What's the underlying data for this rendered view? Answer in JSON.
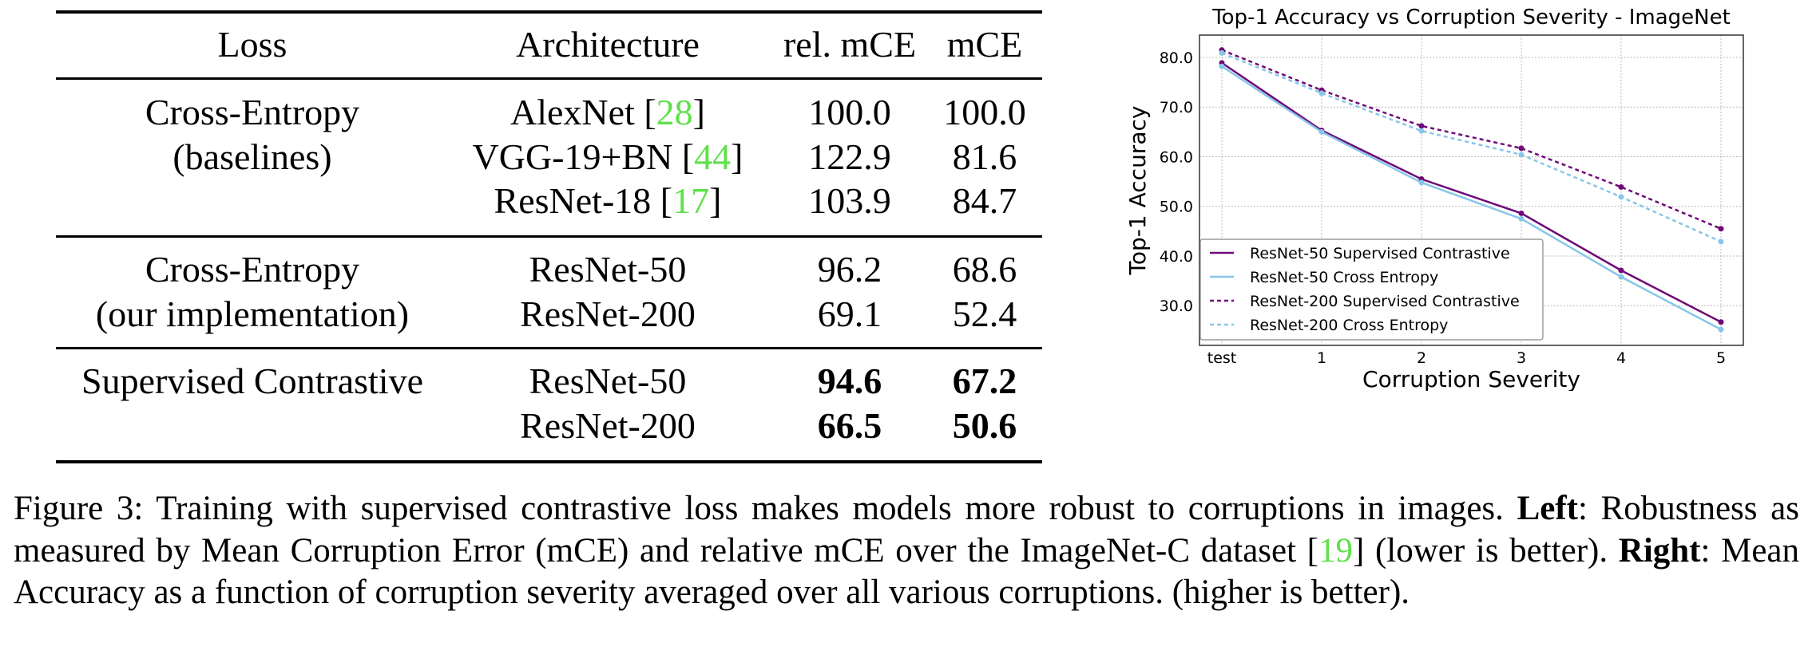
{
  "table": {
    "headers": [
      "Loss",
      "Architecture",
      "rel. mCE",
      "mCE"
    ],
    "groups": [
      {
        "loss": [
          "Cross-Entropy",
          "(baselines)"
        ],
        "rows": [
          {
            "arch": "AlexNet",
            "ref": "28",
            "rel_mce": "100.0",
            "mce": "100.0",
            "bold": false
          },
          {
            "arch": "VGG-19+BN",
            "ref": "44",
            "rel_mce": "122.9",
            "mce": "81.6",
            "bold": false
          },
          {
            "arch": "ResNet-18",
            "ref": "17",
            "rel_mce": "103.9",
            "mce": "84.7",
            "bold": false
          }
        ]
      },
      {
        "loss": [
          "Cross-Entropy",
          "(our implementation)"
        ],
        "rows": [
          {
            "arch": "ResNet-50",
            "ref": null,
            "rel_mce": "96.2",
            "mce": "68.6",
            "bold": false
          },
          {
            "arch": "ResNet-200",
            "ref": null,
            "rel_mce": "69.1",
            "mce": "52.4",
            "bold": false
          }
        ]
      },
      {
        "loss": [
          "Supervised Contrastive"
        ],
        "rows": [
          {
            "arch": "ResNet-50",
            "ref": null,
            "rel_mce": "94.6",
            "mce": "67.2",
            "bold": true
          },
          {
            "arch": "ResNet-200",
            "ref": null,
            "rel_mce": "66.5",
            "mce": "50.6",
            "bold": true
          }
        ]
      }
    ]
  },
  "caption": {
    "prefix": "Figure 3: Training with supervised contrastive loss makes models more robust to corruptions in images. ",
    "left_label": "Left",
    "left_text": ": Robustness as measured by Mean Corruption Error (mCE) and relative mCE over the ImageNet-C dataset [",
    "ref": "19",
    "mid_text": "] (lower is better). ",
    "right_label": "Right",
    "right_text": ": Mean Accuracy as a function of corruption severity averaged over all various corruptions. (higher is better)."
  },
  "colors": {
    "purple": "#6e0a78",
    "lightblue": "#87c6e8",
    "ref_green": "#5fe04a"
  },
  "chart_data": {
    "type": "line",
    "title": "Top-1 Accuracy vs Corruption Severity - ImageNet",
    "xlabel": "Corruption Severity",
    "ylabel": "Top-1 Accuracy",
    "categories": [
      "test",
      "1",
      "2",
      "3",
      "4",
      "5"
    ],
    "yticks": [
      "30.0",
      "40.0",
      "50.0",
      "60.0",
      "70.0",
      "80.0"
    ],
    "ylim": [
      22.0,
      84.5
    ],
    "grid": true,
    "legend_position": "bottom-left",
    "series": [
      {
        "name": "ResNet-50 Supervised Contrastive",
        "color": "#6e0a78",
        "style": "solid",
        "values": [
          78.9,
          65.3,
          55.5,
          48.6,
          37.1,
          26.7
        ]
      },
      {
        "name": "ResNet-50 Cross Entropy",
        "color": "#87c6e8",
        "style": "solid",
        "values": [
          78.2,
          65.0,
          54.8,
          47.5,
          35.8,
          25.2
        ]
      },
      {
        "name": "ResNet-200 Supervised Contrastive",
        "color": "#6e0a78",
        "style": "dashed",
        "values": [
          81.5,
          73.4,
          66.2,
          61.7,
          53.9,
          45.5
        ]
      },
      {
        "name": "ResNet-200 Cross Entropy",
        "color": "#87c6e8",
        "style": "dashed",
        "values": [
          80.9,
          72.8,
          65.2,
          60.4,
          51.9,
          42.9
        ]
      }
    ]
  }
}
